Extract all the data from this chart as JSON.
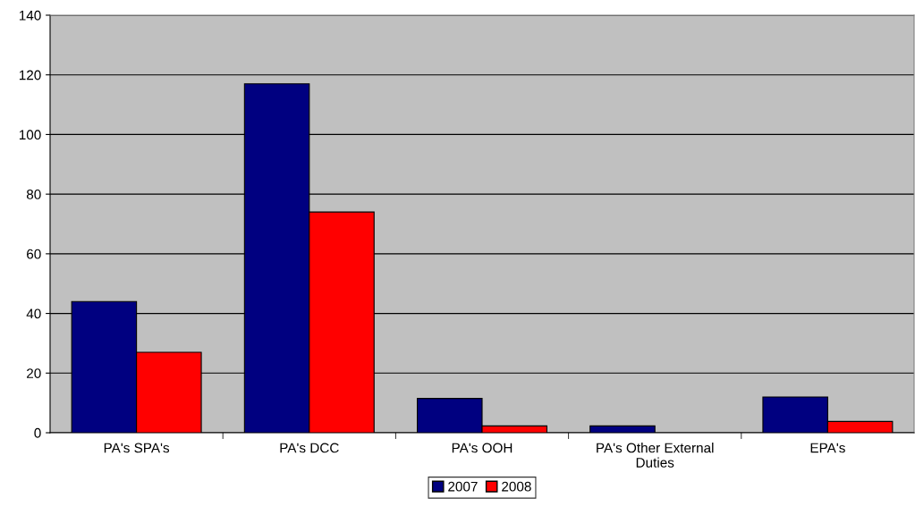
{
  "chart_data": {
    "type": "bar",
    "categories": [
      "PA's SPA's",
      "PA's DCC",
      "PA's OOH",
      "PA's Other External Duties",
      "EPA's"
    ],
    "series": [
      {
        "name": "2007",
        "color": "#000080",
        "values": [
          44,
          117,
          11.5,
          2.3,
          12
        ]
      },
      {
        "name": "2008",
        "color": "#ff0000",
        "values": [
          27,
          74,
          2.3,
          null,
          3.8
        ]
      }
    ],
    "ylim": [
      0,
      140
    ],
    "yticks": [
      0,
      20,
      40,
      60,
      80,
      100,
      120,
      140
    ],
    "grid": "y",
    "legend": "bottom"
  }
}
